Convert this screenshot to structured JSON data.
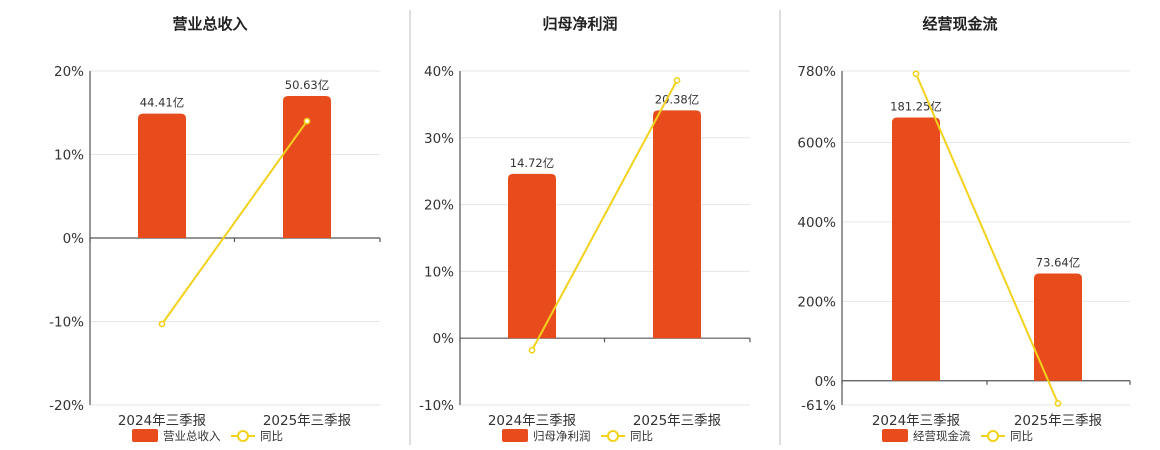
{
  "colors": {
    "bar": "#E84C1C",
    "line": "#F2D21B",
    "grid": "#e6e6e6",
    "axis": "#555555"
  },
  "legend_line_label": "同比",
  "chart_data": [
    {
      "type": "bar",
      "title": "营业总收入",
      "categories": [
        "2024年三季报",
        "2025年三季报"
      ],
      "ylim": [
        -20,
        20
      ],
      "yticks": [
        "20%",
        "10%",
        "0%",
        "-10%",
        "-20%"
      ],
      "yticks_values": [
        20,
        10,
        0,
        -10,
        -20
      ],
      "series": [
        {
          "name": "营业总收入",
          "kind": "bar",
          "values": [
            14.9,
            17.0
          ],
          "labels": [
            "44.41亿",
            "50.63亿"
          ]
        },
        {
          "name": "同比",
          "kind": "line",
          "values": [
            -10.3,
            14.0
          ]
        }
      ],
      "grid": true,
      "legend": "bottom"
    },
    {
      "type": "bar",
      "title": "归母净利润",
      "categories": [
        "2024年三季报",
        "2025年三季报"
      ],
      "ylim": [
        -10,
        40
      ],
      "yticks": [
        "40%",
        "30%",
        "20%",
        "10%",
        "0%",
        "-10%"
      ],
      "yticks_values": [
        40,
        30,
        20,
        10,
        0,
        -10
      ],
      "series": [
        {
          "name": "归母净利润",
          "kind": "bar",
          "values": [
            24.6,
            34.1
          ],
          "labels": [
            "14.72亿",
            "20.38亿"
          ]
        },
        {
          "name": "同比",
          "kind": "line",
          "values": [
            -1.8,
            38.6
          ]
        }
      ],
      "grid": true,
      "legend": "bottom"
    },
    {
      "type": "bar",
      "title": "经营现金流",
      "categories": [
        "2024年三季报",
        "2025年三季报"
      ],
      "ylim": [
        -61,
        780
      ],
      "yticks": [
        "780%",
        "600%",
        "400%",
        "200%",
        "0%",
        "-61%"
      ],
      "yticks_values": [
        780,
        600,
        400,
        200,
        0,
        -61
      ],
      "series": [
        {
          "name": "经营现金流",
          "kind": "bar",
          "values": [
            663,
            270
          ],
          "labels": [
            "181.25亿",
            "73.64亿"
          ]
        },
        {
          "name": "同比",
          "kind": "line",
          "values": [
            773,
            -57
          ]
        }
      ],
      "grid": true,
      "legend": "bottom"
    }
  ]
}
